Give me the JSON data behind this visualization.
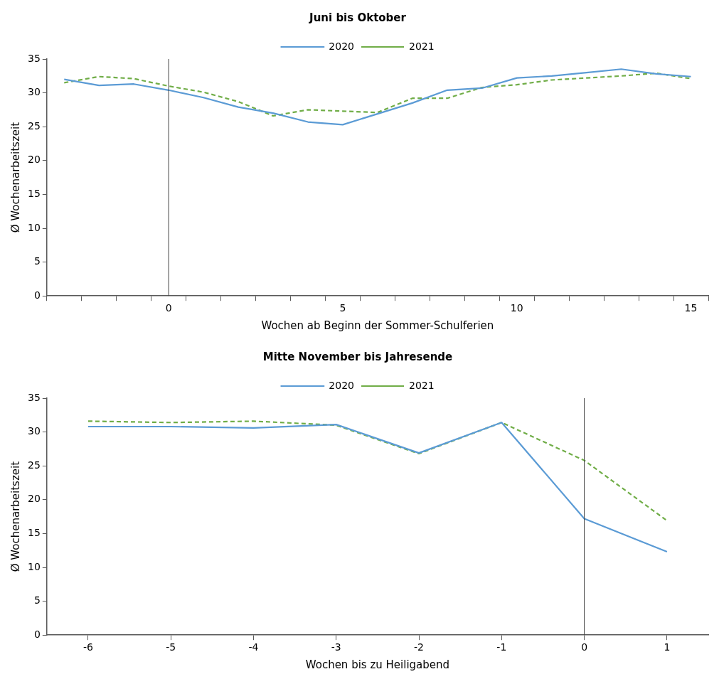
{
  "chart_data": [
    {
      "type": "line",
      "title": "Juni bis Oktober",
      "xlabel": "Wochen ab Beginn der Sommer-Schulferien",
      "ylabel": "Ø Wochenarbeitszeit",
      "categories": [
        null,
        null,
        null,
        "0",
        null,
        null,
        null,
        null,
        "5",
        null,
        null,
        null,
        null,
        "10",
        null,
        null,
        null,
        null,
        "15"
      ],
      "series": [
        {
          "name": "2020",
          "color": "#5b9bd5",
          "line_style": "solid",
          "values": [
            32.0,
            31.1,
            31.3,
            30.4,
            29.3,
            27.9,
            27.0,
            25.7,
            25.3,
            26.9,
            28.5,
            30.4,
            30.7,
            32.2,
            32.5,
            33.0,
            33.5,
            32.8,
            32.4
          ]
        },
        {
          "name": "2021",
          "color": "#70ad47",
          "line_style": "dashed",
          "values": [
            31.5,
            32.4,
            32.1,
            31.0,
            30.1,
            28.7,
            26.6,
            27.5,
            27.3,
            27.1,
            29.2,
            29.2,
            30.8,
            31.2,
            31.9,
            32.2,
            32.5,
            32.9,
            32.1
          ]
        }
      ],
      "ylim": [
        0,
        35
      ],
      "yticks": [
        0,
        5,
        10,
        15,
        20,
        25,
        30,
        35
      ],
      "grid": false,
      "legend": "top",
      "marker": "none",
      "ref_lines": [
        {
          "axis": "x",
          "value": "0",
          "color": "#404040"
        }
      ]
    },
    {
      "type": "line",
      "title": "Mitte November bis Jahresende",
      "xlabel": "Wochen bis zu Heiligabend",
      "ylabel": "Ø Wochenarbeitszeit",
      "categories": [
        "-6",
        "-5",
        "-4",
        "-3",
        "-2",
        "-1",
        "0",
        "1"
      ],
      "series": [
        {
          "name": "2020",
          "color": "#5b9bd5",
          "line_style": "solid",
          "values": [
            30.8,
            30.8,
            30.6,
            31.1,
            26.9,
            31.4,
            17.2,
            12.3
          ]
        },
        {
          "name": "2021",
          "color": "#70ad47",
          "line_style": "dashed",
          "values": [
            31.6,
            31.4,
            31.6,
            31.0,
            26.8,
            31.4,
            25.8,
            16.9
          ]
        }
      ],
      "ylim": [
        0,
        35
      ],
      "yticks": [
        0,
        5,
        10,
        15,
        20,
        25,
        30,
        35
      ],
      "grid": false,
      "legend": "top",
      "marker": "none",
      "ref_lines": [
        {
          "axis": "x",
          "value": "0",
          "color": "#404040"
        }
      ]
    }
  ]
}
